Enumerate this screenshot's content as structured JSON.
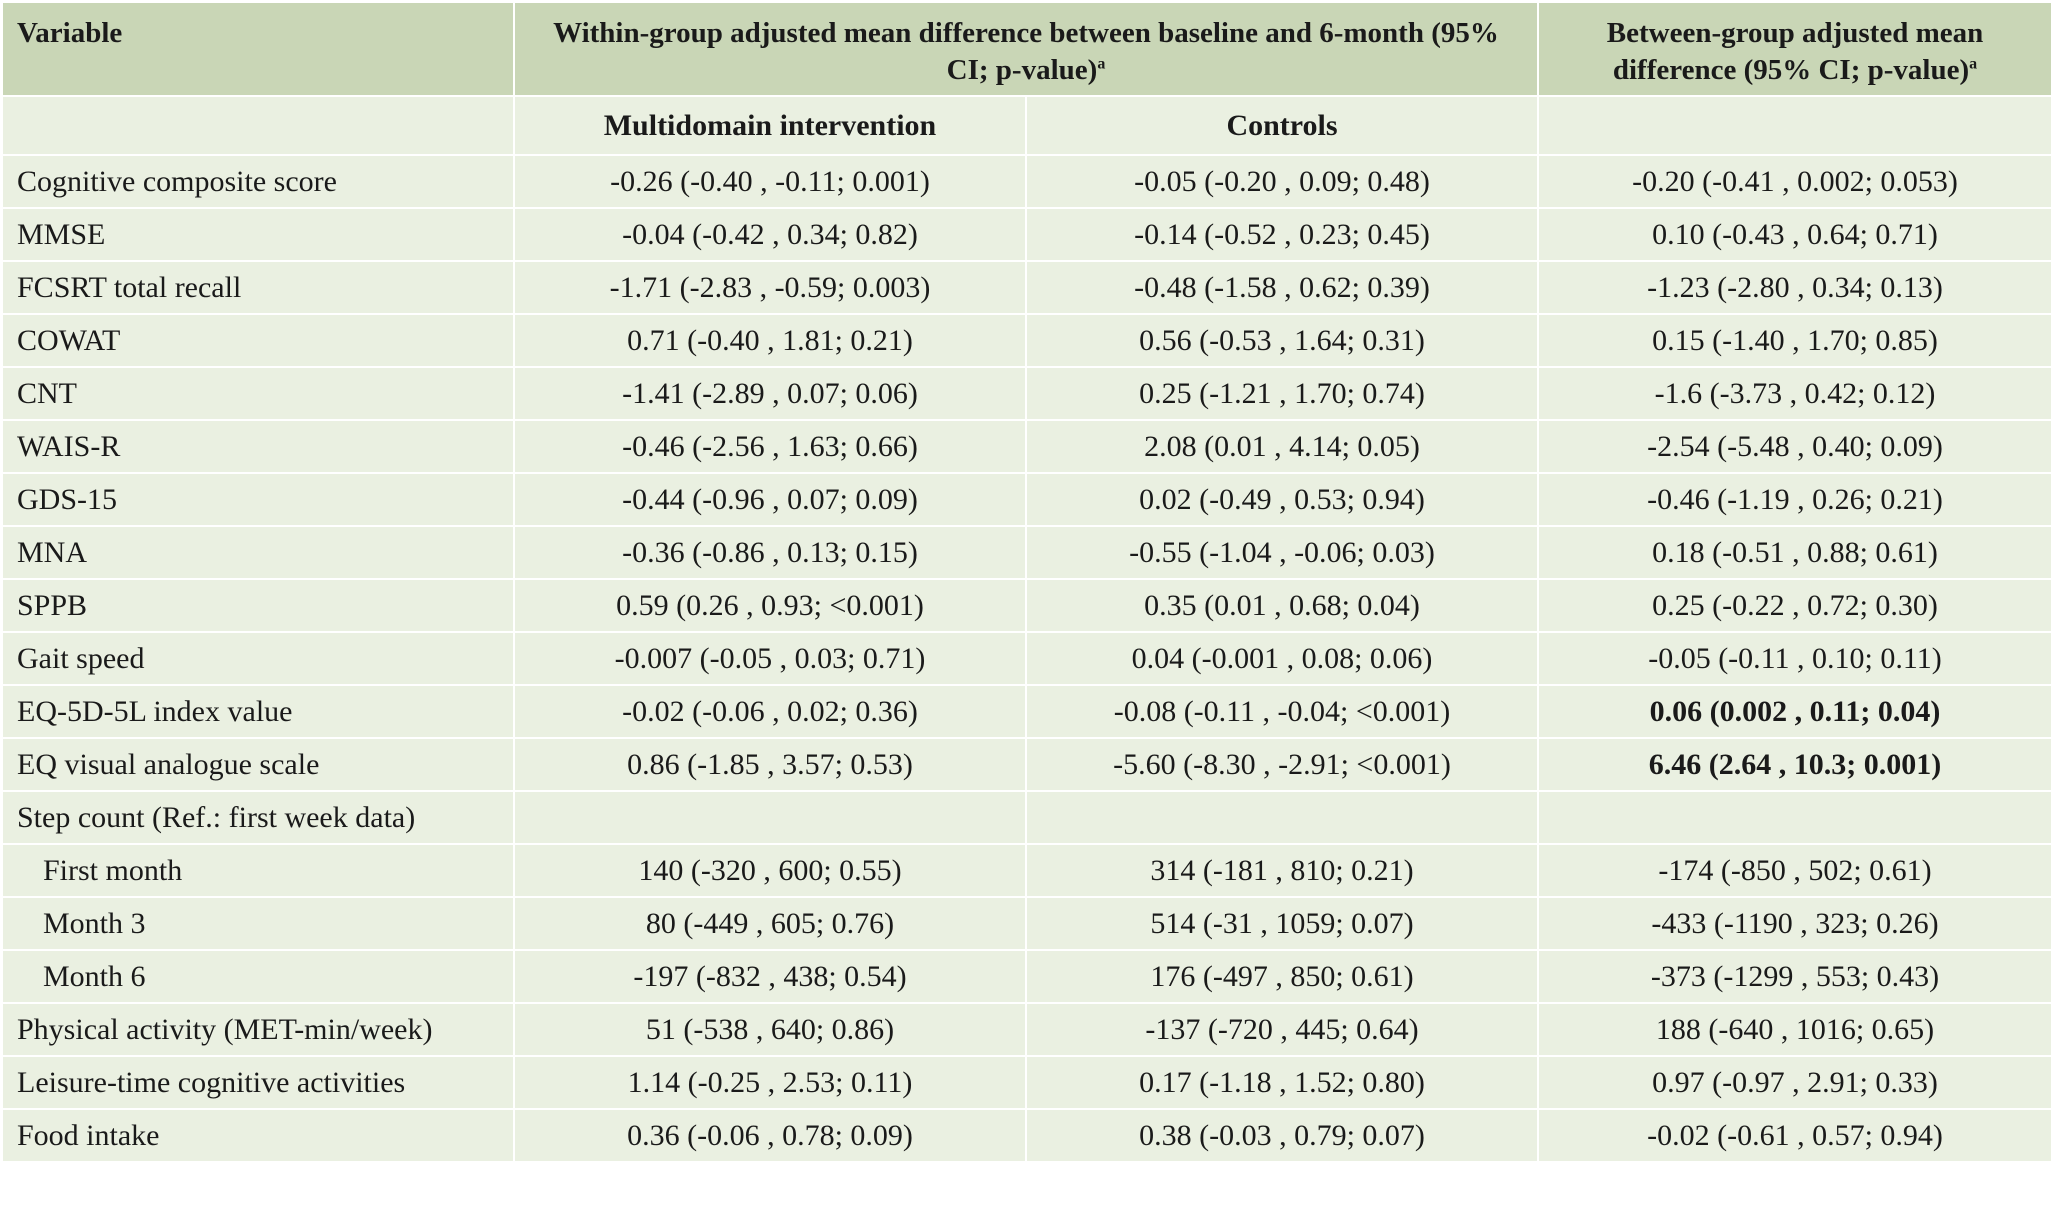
{
  "header": {
    "variable": "Variable",
    "within": "Within-group adjusted mean difference between baseline and 6-month (95% CI; p-value)",
    "between": "Between-group adjusted mean difference (95% CI; p-value)",
    "footnote_marker": "a",
    "intervention": "Multidomain intervention",
    "controls": "Controls"
  },
  "rows": [
    {
      "label": "Cognitive composite score",
      "intervention": "-0.26 (-0.40 , -0.11; 0.001)",
      "controls": "-0.05 (-0.20 , 0.09; 0.48)",
      "between": "-0.20 (-0.41 , 0.002; 0.053)"
    },
    {
      "label": "MMSE",
      "intervention": "-0.04 (-0.42 , 0.34; 0.82)",
      "controls": "-0.14 (-0.52 , 0.23; 0.45)",
      "between": "0.10 (-0.43 , 0.64; 0.71)"
    },
    {
      "label": "FCSRT total recall",
      "intervention": "-1.71 (-2.83 , -0.59; 0.003)",
      "controls": "-0.48 (-1.58 , 0.62; 0.39)",
      "between": "-1.23 (-2.80 , 0.34; 0.13)"
    },
    {
      "label": "COWAT",
      "intervention": "0.71 (-0.40 , 1.81; 0.21)",
      "controls": "0.56 (-0.53 , 1.64; 0.31)",
      "between": "0.15 (-1.40 , 1.70; 0.85)"
    },
    {
      "label": "CNT",
      "intervention": "-1.41 (-2.89 , 0.07; 0.06)",
      "controls": "0.25 (-1.21 , 1.70; 0.74)",
      "between": "-1.6 (-3.73 , 0.42; 0.12)"
    },
    {
      "label": "WAIS-R",
      "intervention": "-0.46 (-2.56 , 1.63; 0.66)",
      "controls": "2.08 (0.01 , 4.14; 0.05)",
      "between": "-2.54 (-5.48 , 0.40; 0.09)"
    },
    {
      "label": "GDS-15",
      "intervention": "-0.44 (-0.96 , 0.07; 0.09)",
      "controls": "0.02 (-0.49 , 0.53; 0.94)",
      "between": "-0.46 (-1.19 , 0.26; 0.21)"
    },
    {
      "label": "MNA",
      "intervention": "-0.36 (-0.86 , 0.13; 0.15)",
      "controls": "-0.55 (-1.04 , -0.06; 0.03)",
      "between": "0.18 (-0.51 , 0.88; 0.61)"
    },
    {
      "label": "SPPB",
      "intervention": "0.59 (0.26 , 0.93; <0.001)",
      "controls": "0.35 (0.01 , 0.68; 0.04)",
      "between": "0.25 (-0.22 , 0.72; 0.30)"
    },
    {
      "label": "Gait speed",
      "intervention": "-0.007 (-0.05 , 0.03; 0.71)",
      "controls": "0.04 (-0.001 , 0.08; 0.06)",
      "between": "-0.05 (-0.11 , 0.10; 0.11)"
    },
    {
      "label": "EQ-5D-5L index value",
      "intervention": "-0.02 (-0.06 , 0.02; 0.36)",
      "controls": "-0.08 (-0.11 , -0.04; <0.001)",
      "between": "0.06 (0.002 , 0.11; 0.04)"
    },
    {
      "label": "EQ visual analogue scale",
      "intervention": "0.86 (-1.85 , 3.57; 0.53)",
      "controls": "-5.60 (-8.30 , -2.91; <0.001)",
      "between": "6.46 (2.64 , 10.3; 0.001)"
    },
    {
      "label": "Step count (Ref.: first week data)",
      "intervention": "",
      "controls": "",
      "between": ""
    },
    {
      "label": "First month",
      "intervention": "140 (-320 , 600; 0.55)",
      "controls": "314 (-181 , 810; 0.21)",
      "between": "-174 (-850 , 502; 0.61)"
    },
    {
      "label": "Month 3",
      "intervention": "80 (-449 , 605; 0.76)",
      "controls": "514 (-31 , 1059; 0.07)",
      "between": "-433 (-1190 , 323; 0.26)"
    },
    {
      "label": "Month 6",
      "intervention": "-197 (-832 , 438; 0.54)",
      "controls": "176 (-497 , 850; 0.61)",
      "between": "-373 (-1299 , 553; 0.43)"
    },
    {
      "label": "Physical activity (MET-min/week)",
      "intervention": "51 (-538 , 640; 0.86)",
      "controls": "-137 (-720 , 445; 0.64)",
      "between": "188 (-640 , 1016; 0.65)"
    },
    {
      "label": "Leisure-time cognitive activities",
      "intervention": "1.14 (-0.25 , 2.53; 0.11)",
      "controls": "0.17 (-1.18 , 1.52; 0.80)",
      "between": "0.97 (-0.97 , 2.91; 0.33)"
    },
    {
      "label": "Food intake",
      "intervention": "0.36 (-0.06 , 0.78; 0.09)",
      "controls": "0.38 (-0.03 , 0.79; 0.07)",
      "between": "-0.02 (-0.61 , 0.57; 0.94)"
    }
  ]
}
